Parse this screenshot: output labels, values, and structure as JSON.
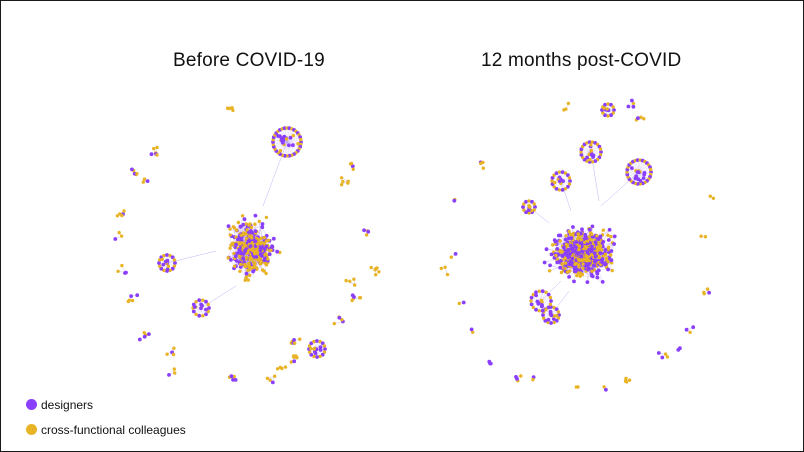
{
  "panels": [
    {
      "title": "Before COVID-19"
    },
    {
      "title": "12 months post-COVID"
    }
  ],
  "legend": [
    {
      "label": "designers",
      "color": "#8a3ffc"
    },
    {
      "label": "cross-functional colleagues",
      "color": "#e8b425"
    }
  ],
  "colors": {
    "designer_node": "#8a3ffc",
    "colleague_node": "#e8b425",
    "edge": "#b79cf2",
    "frame": "#1a1a1a"
  }
}
